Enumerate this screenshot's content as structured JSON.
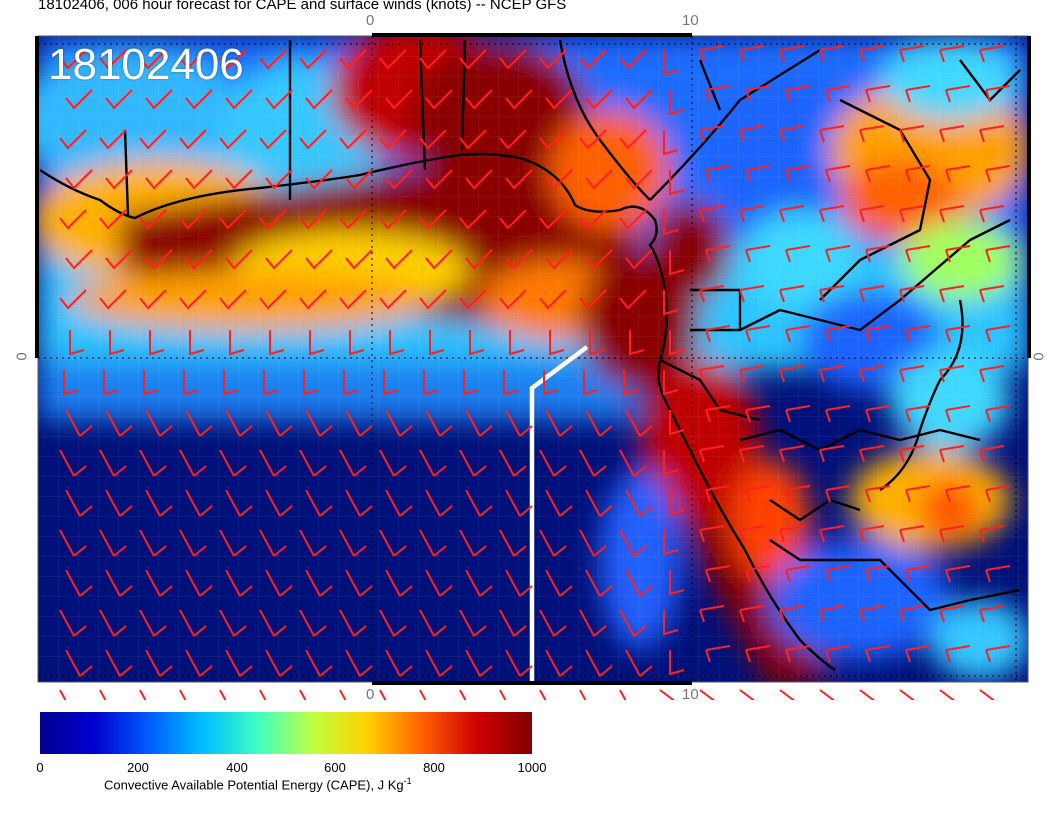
{
  "title": "18102406, 006 hour forecast for CAPE and surface winds (knots) -- NCEP GFS",
  "map": {
    "stamp": "18102406",
    "ticks": {
      "top_left": "0",
      "top_right": "10",
      "bottom_left": "0",
      "bottom_right": "10",
      "left": "0",
      "right": "0"
    },
    "wind_barb_color": "#ff2020",
    "coast_color": "#000000",
    "analysis_line_color": "#ffffff"
  },
  "colorbar": {
    "title": "Convective Available Potential Energy (CAPE), J Kg",
    "unit_exponent": "-1",
    "labels": [
      "0",
      "200",
      "400",
      "600",
      "800",
      "1000"
    ],
    "colors": [
      "#00008f",
      "#0000d0",
      "#005dff",
      "#00c0ff",
      "#40ffc0",
      "#c0ff40",
      "#ffd000",
      "#ff6000",
      "#d00000",
      "#800000"
    ],
    "min": 0,
    "max": 1000
  }
}
